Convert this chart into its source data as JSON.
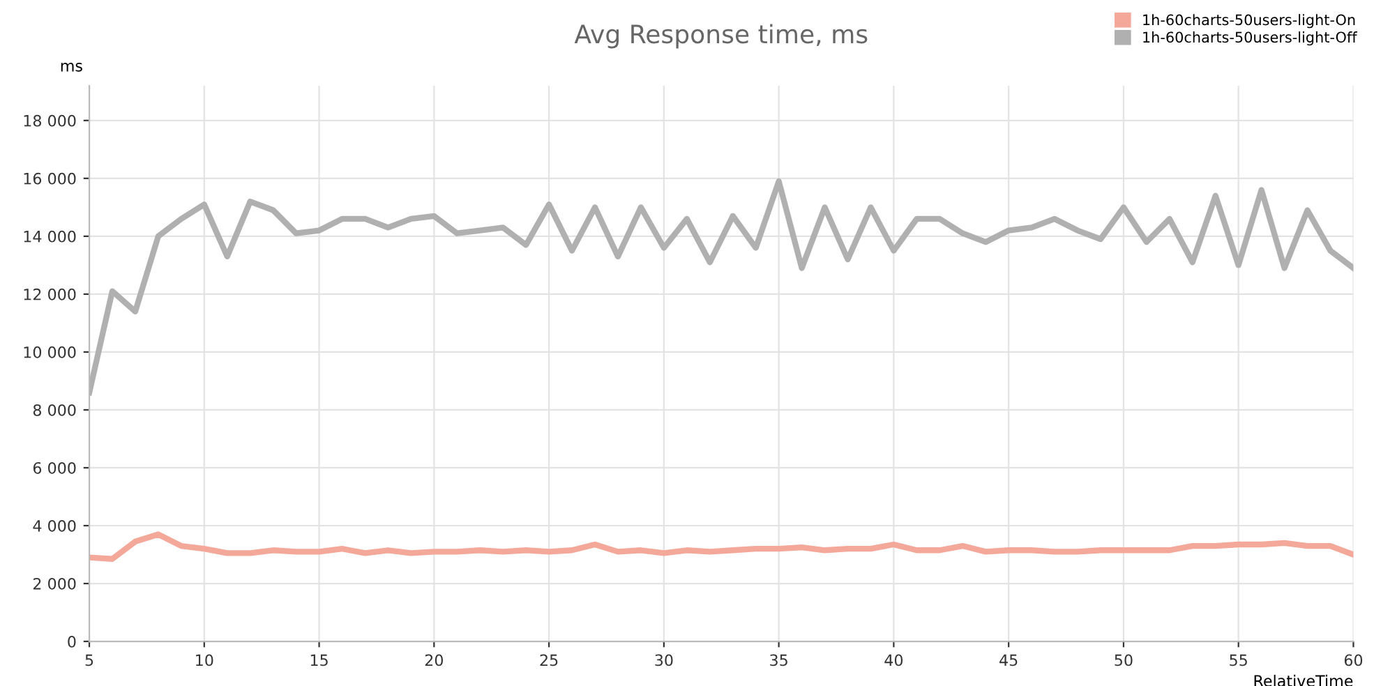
{
  "chart_data": {
    "type": "line",
    "title": "Avg Response time, ms",
    "ylabel": "ms",
    "xlabel": "RelativeTime",
    "x": [
      5,
      6,
      7,
      8,
      9,
      10,
      11,
      12,
      13,
      14,
      15,
      16,
      17,
      18,
      19,
      20,
      21,
      22,
      23,
      24,
      25,
      26,
      27,
      28,
      29,
      30,
      31,
      32,
      33,
      34,
      35,
      36,
      37,
      38,
      39,
      40,
      41,
      42,
      43,
      44,
      45,
      46,
      47,
      48,
      49,
      50,
      51,
      52,
      53,
      54,
      55,
      56,
      57,
      58,
      59,
      60
    ],
    "series": [
      {
        "name": "1h-60charts-50users-light-On",
        "color": "#f4a89a",
        "values": [
          2900,
          2850,
          3450,
          3700,
          3300,
          3200,
          3050,
          3050,
          3150,
          3100,
          3100,
          3200,
          3050,
          3150,
          3050,
          3100,
          3100,
          3150,
          3100,
          3150,
          3100,
          3150,
          3350,
          3100,
          3150,
          3050,
          3150,
          3100,
          3150,
          3200,
          3200,
          3250,
          3150,
          3200,
          3200,
          3350,
          3150,
          3150,
          3300,
          3100,
          3150,
          3150,
          3100,
          3100,
          3150,
          3150,
          3150,
          3150,
          3300,
          3300,
          3350,
          3350,
          3400,
          3300,
          3300,
          3000
        ]
      },
      {
        "name": "1h-60charts-50users-light-Off",
        "color": "#b0b0b0",
        "values": [
          8600,
          12100,
          11400,
          14000,
          14600,
          15100,
          13300,
          15200,
          14900,
          14100,
          14200,
          14600,
          14600,
          14300,
          14600,
          14700,
          14100,
          14200,
          14300,
          13700,
          15100,
          13500,
          15000,
          13300,
          15000,
          13600,
          14600,
          13100,
          14700,
          13600,
          15900,
          12900,
          15000,
          13200,
          15000,
          13500,
          14600,
          14600,
          14100,
          13800,
          14200,
          14300,
          14600,
          14200,
          13900,
          15000,
          13800,
          14600,
          13100,
          15400,
          13000,
          15600,
          12900,
          14900,
          13500,
          12900
        ]
      }
    ],
    "xlim": [
      5,
      60
    ],
    "xticks": [
      5,
      10,
      15,
      20,
      25,
      30,
      35,
      40,
      45,
      50,
      55,
      60
    ],
    "ylim": [
      0,
      19200
    ],
    "yticks": [
      0,
      {
        "value": 2000,
        "label": "2 000"
      },
      {
        "value": 4000,
        "label": "4 000"
      },
      {
        "value": 6000,
        "label": "6 000"
      },
      {
        "value": 8000,
        "label": "8 000"
      },
      {
        "value": 10000,
        "label": "10 000"
      },
      {
        "value": 12000,
        "label": "12 000"
      },
      {
        "value": 14000,
        "label": "14 000"
      },
      {
        "value": 16000,
        "label": "16 000"
      },
      {
        "value": 18000,
        "label": "18 000"
      }
    ],
    "grid": true,
    "legend": "top right",
    "marker": "none",
    "line_style": "solid"
  }
}
